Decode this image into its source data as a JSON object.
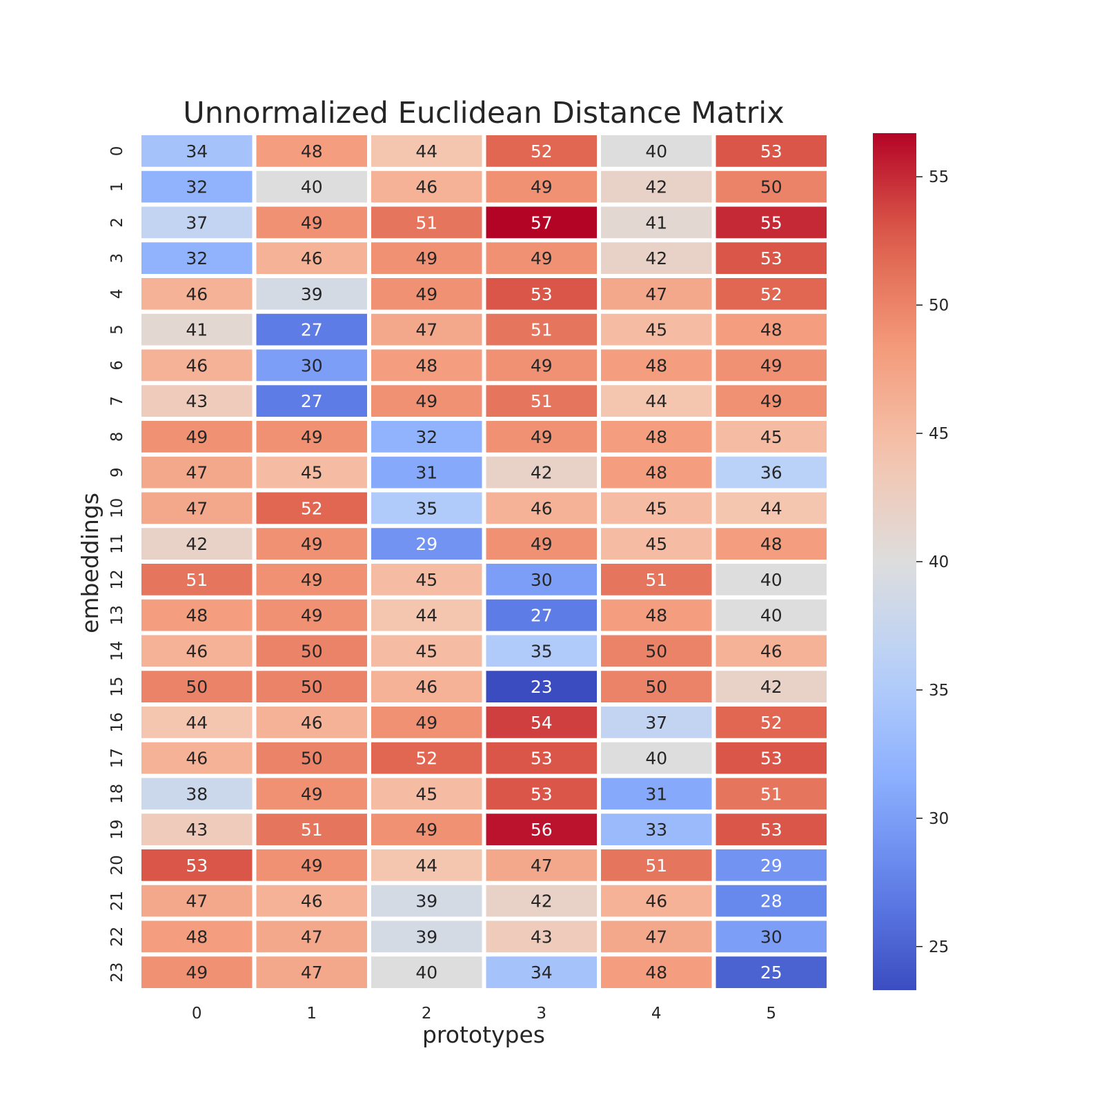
{
  "chart_data": {
    "type": "heatmap",
    "title": "Unnormalized Euclidean Distance Matrix",
    "xlabel": "prototypes",
    "ylabel": "embeddings",
    "x_categories": [
      "0",
      "1",
      "2",
      "3",
      "4",
      "5"
    ],
    "y_categories": [
      "0",
      "1",
      "2",
      "3",
      "4",
      "5",
      "6",
      "7",
      "8",
      "9",
      "10",
      "11",
      "12",
      "13",
      "14",
      "15",
      "16",
      "17",
      "18",
      "19",
      "20",
      "21",
      "22",
      "23"
    ],
    "values": [
      [
        34,
        48,
        44,
        52,
        40,
        53
      ],
      [
        32,
        40,
        46,
        49,
        42,
        50
      ],
      [
        37,
        49,
        51,
        57,
        41,
        55
      ],
      [
        32,
        46,
        49,
        49,
        42,
        53
      ],
      [
        46,
        39,
        49,
        53,
        47,
        52
      ],
      [
        41,
        27,
        47,
        51,
        45,
        48
      ],
      [
        46,
        30,
        48,
        49,
        48,
        49
      ],
      [
        43,
        27,
        49,
        51,
        44,
        49
      ],
      [
        49,
        49,
        32,
        49,
        48,
        45
      ],
      [
        47,
        45,
        31,
        42,
        48,
        36
      ],
      [
        47,
        52,
        35,
        46,
        45,
        44
      ],
      [
        42,
        49,
        29,
        49,
        45,
        48
      ],
      [
        51,
        49,
        45,
        30,
        51,
        40
      ],
      [
        48,
        49,
        44,
        27,
        48,
        40
      ],
      [
        46,
        50,
        45,
        35,
        50,
        46
      ],
      [
        50,
        50,
        46,
        23,
        50,
        42
      ],
      [
        44,
        46,
        49,
        54,
        37,
        52
      ],
      [
        46,
        50,
        52,
        53,
        40,
        53
      ],
      [
        38,
        49,
        45,
        53,
        31,
        51
      ],
      [
        43,
        51,
        49,
        56,
        33,
        53
      ],
      [
        53,
        49,
        44,
        47,
        51,
        29
      ],
      [
        47,
        46,
        39,
        42,
        46,
        28
      ],
      [
        48,
        47,
        39,
        43,
        47,
        30
      ],
      [
        49,
        47,
        40,
        34,
        48,
        25
      ]
    ],
    "colormap": "coolwarm",
    "colorbar": {
      "vmin": 23.3,
      "vmax": 56.7,
      "ticks": [
        "25",
        "30",
        "35",
        "40",
        "45",
        "50",
        "55"
      ]
    },
    "grid": false,
    "legend": "colorbar-right"
  }
}
